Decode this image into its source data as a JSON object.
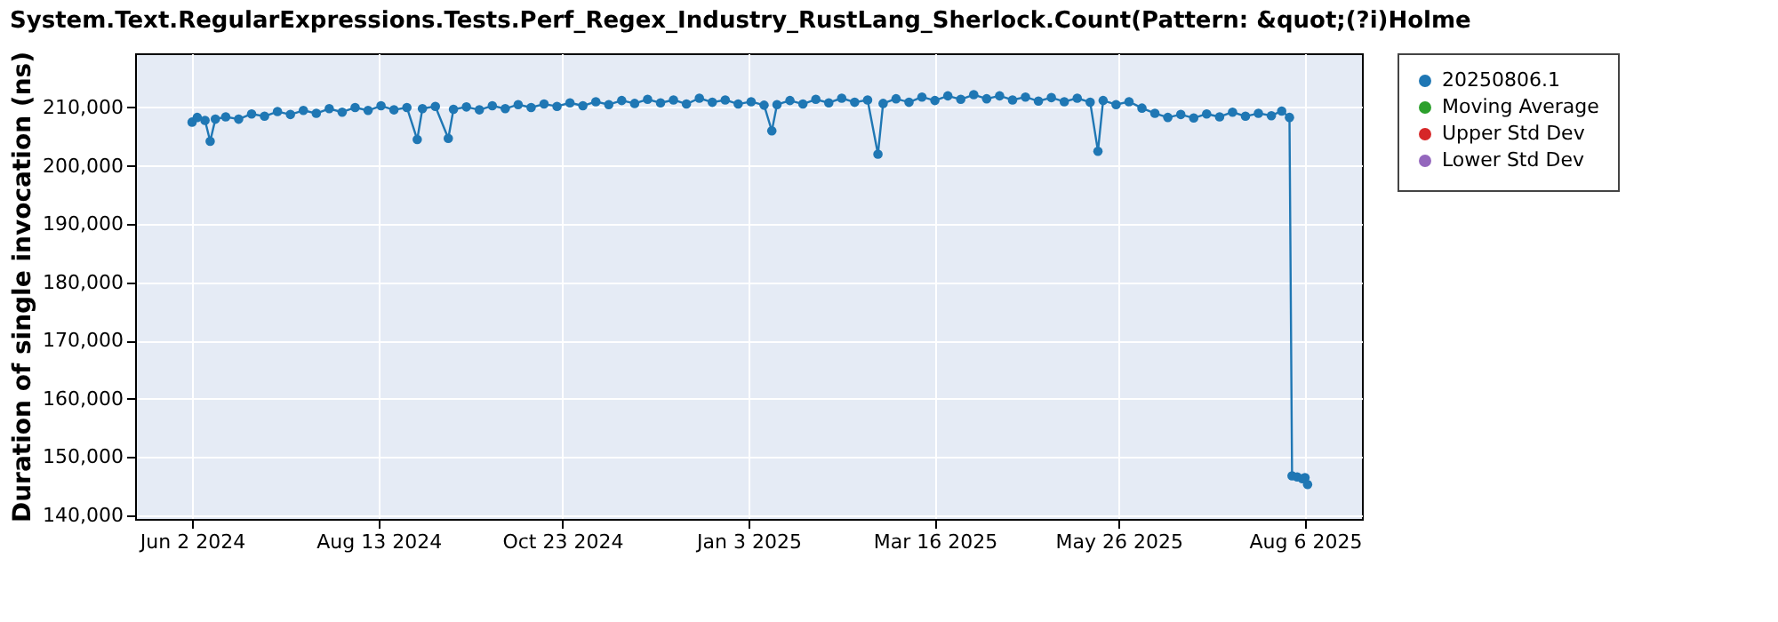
{
  "chart_data": {
    "type": "line",
    "title": "System.Text.RegularExpressions.Tests.Perf_Regex_Industry_RustLang_Sherlock.Count(Pattern: &quot;(?i)Holme",
    "ylabel": "Duration of single invocation (ns)",
    "xlim": [
      "2024-05-11",
      "2025-08-28"
    ],
    "xticks": [
      {
        "value": "2024-06-02",
        "label": "Jun 2 2024"
      },
      {
        "value": "2024-08-13",
        "label": "Aug 13 2024"
      },
      {
        "value": "2024-10-23",
        "label": "Oct 23 2024"
      },
      {
        "value": "2025-01-03",
        "label": "Jan 3 2025"
      },
      {
        "value": "2025-03-16",
        "label": "Mar 16 2025"
      },
      {
        "value": "2025-05-26",
        "label": "May 26 2025"
      },
      {
        "value": "2025-08-06",
        "label": "Aug 6 2025"
      }
    ],
    "ylim": [
      139400,
      219300
    ],
    "yticks": [
      {
        "value": 140000,
        "label": "140,000"
      },
      {
        "value": 150000,
        "label": "150,000"
      },
      {
        "value": 160000,
        "label": "160,000"
      },
      {
        "value": 170000,
        "label": "170,000"
      },
      {
        "value": 180000,
        "label": "180,000"
      },
      {
        "value": 190000,
        "label": "190,000"
      },
      {
        "value": 200000,
        "label": "200,000"
      },
      {
        "value": 210000,
        "label": "210,000"
      }
    ],
    "grid": true,
    "legend": "right",
    "marker": "circle",
    "line_style": "solid",
    "series": [
      {
        "name": "20250806.1",
        "color": "#1f77b4",
        "x": [
          "2024-06-02",
          "2024-06-04",
          "2024-06-07",
          "2024-06-09",
          "2024-06-11",
          "2024-06-15",
          "2024-06-20",
          "2024-06-25",
          "2024-06-30",
          "2024-07-05",
          "2024-07-10",
          "2024-07-15",
          "2024-07-20",
          "2024-07-25",
          "2024-07-30",
          "2024-08-04",
          "2024-08-09",
          "2024-08-14",
          "2024-08-19",
          "2024-08-24",
          "2024-08-28",
          "2024-08-30",
          "2024-09-04",
          "2024-09-09",
          "2024-09-11",
          "2024-09-16",
          "2024-09-21",
          "2024-09-26",
          "2024-10-01",
          "2024-10-06",
          "2024-10-11",
          "2024-10-16",
          "2024-10-21",
          "2024-10-26",
          "2024-10-31",
          "2024-11-05",
          "2024-11-10",
          "2024-11-15",
          "2024-11-20",
          "2024-11-25",
          "2024-11-30",
          "2024-12-05",
          "2024-12-10",
          "2024-12-15",
          "2024-12-20",
          "2024-12-25",
          "2024-12-30",
          "2025-01-04",
          "2025-01-09",
          "2025-01-12",
          "2025-01-14",
          "2025-01-19",
          "2025-01-24",
          "2025-01-29",
          "2025-02-03",
          "2025-02-08",
          "2025-02-13",
          "2025-02-18",
          "2025-02-22",
          "2025-02-24",
          "2025-03-01",
          "2025-03-06",
          "2025-03-11",
          "2025-03-16",
          "2025-03-21",
          "2025-03-26",
          "2025-03-31",
          "2025-04-05",
          "2025-04-10",
          "2025-04-15",
          "2025-04-20",
          "2025-04-25",
          "2025-04-30",
          "2025-05-05",
          "2025-05-10",
          "2025-05-15",
          "2025-05-18",
          "2025-05-20",
          "2025-05-25",
          "2025-05-30",
          "2025-06-04",
          "2025-06-09",
          "2025-06-14",
          "2025-06-19",
          "2025-06-24",
          "2025-06-29",
          "2025-07-04",
          "2025-07-09",
          "2025-07-14",
          "2025-07-19",
          "2025-07-24",
          "2025-07-28",
          "2025-07-31",
          "2025-08-01",
          "2025-08-03",
          "2025-08-05",
          "2025-08-06",
          "2025-08-07"
        ],
        "values": [
          207500,
          208300,
          207800,
          204200,
          208000,
          208400,
          208000,
          208900,
          208500,
          209300,
          208800,
          209500,
          209000,
          209800,
          209200,
          210000,
          209500,
          210300,
          209600,
          210000,
          204500,
          209800,
          210200,
          204700,
          209700,
          210100,
          209600,
          210300,
          209800,
          210500,
          210000,
          210600,
          210200,
          210800,
          210300,
          211000,
          210500,
          211200,
          210700,
          211400,
          210800,
          211300,
          210600,
          211600,
          210900,
          211300,
          210600,
          211000,
          210400,
          206000,
          210500,
          211200,
          210600,
          211400,
          210800,
          211600,
          210900,
          211300,
          202000,
          210700,
          211500,
          210900,
          211800,
          211200,
          212000,
          211400,
          212200,
          211500,
          212000,
          211300,
          211800,
          211100,
          211700,
          211000,
          211600,
          210900,
          202500,
          211200,
          210500,
          211000,
          209900,
          209000,
          208300,
          208800,
          208200,
          208900,
          208400,
          209200,
          208500,
          209000,
          208600,
          209400,
          208300,
          146800,
          146600,
          146300,
          146500,
          145300
        ]
      },
      {
        "name": "Moving Average",
        "color": "#2ca02c"
      },
      {
        "name": "Upper Std Dev",
        "color": "#d62728"
      },
      {
        "name": "Lower Std Dev",
        "color": "#9467bd"
      }
    ]
  }
}
